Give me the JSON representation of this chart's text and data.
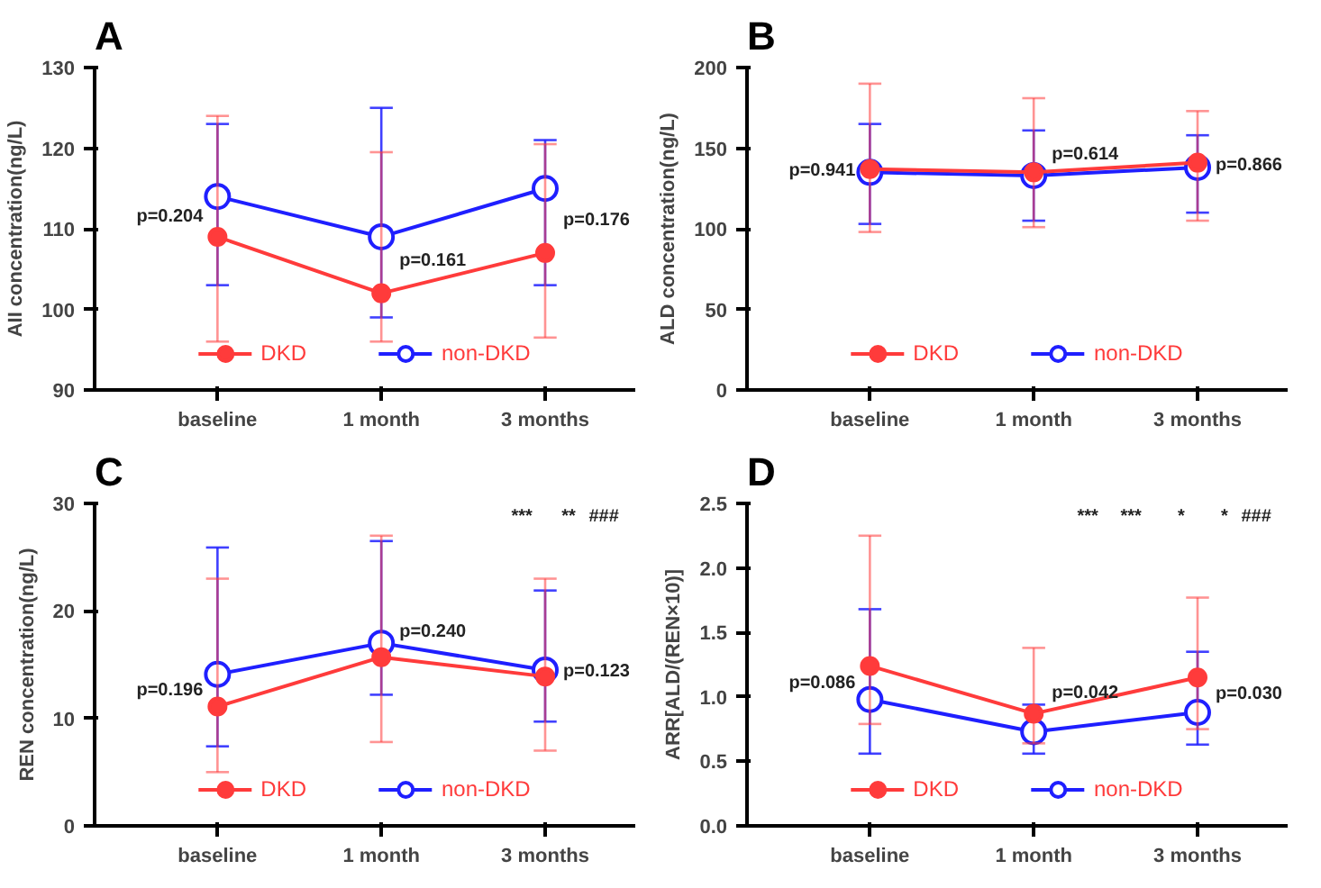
{
  "chart_data": [
    {
      "type": "line",
      "title": "A",
      "ylabel": "AII concentration(ng/L)",
      "categories": [
        "baseline",
        "1 month",
        "3 months"
      ],
      "ylim": [
        90,
        130
      ],
      "yticks": [
        90,
        100,
        110,
        120,
        130
      ],
      "legend": "bottom",
      "marker": "circle",
      "grid": false,
      "series": [
        {
          "name": "DKD",
          "color": "#ff3b3b",
          "values": [
            109,
            102,
            107
          ],
          "errors": [
            [
              96,
              124
            ],
            [
              96,
              119.5
            ],
            [
              96.5,
              120.5
            ]
          ]
        },
        {
          "name": "non-DKD",
          "color": "#1f1fff",
          "values": [
            114,
            109,
            115
          ],
          "errors": [
            [
              103,
              123
            ],
            [
              99,
              125
            ],
            [
              103,
              121
            ]
          ]
        }
      ],
      "annotations": [
        {
          "text": "p=0.204",
          "x": "baseline",
          "y": 111.5
        },
        {
          "text": "p=0.161",
          "x": "1 month",
          "y": 106
        },
        {
          "text": "p=0.176",
          "x": "3 months",
          "y": 111
        }
      ]
    },
    {
      "type": "line",
      "title": "B",
      "ylabel": "ALD concentration(ng/L)",
      "categories": [
        "baseline",
        "1 month",
        "3 months"
      ],
      "ylim": [
        0,
        200
      ],
      "yticks": [
        0,
        50,
        100,
        150,
        200
      ],
      "legend": "bottom",
      "marker": "circle",
      "grid": false,
      "series": [
        {
          "name": "DKD",
          "color": "#ff3b3b",
          "values": [
            137,
            135,
            141
          ],
          "errors": [
            [
              98,
              190
            ],
            [
              101,
              181
            ],
            [
              105,
              173
            ]
          ]
        },
        {
          "name": "non-DKD",
          "color": "#1f1fff",
          "values": [
            135,
            133,
            138
          ],
          "errors": [
            [
              103,
              165
            ],
            [
              105,
              161
            ],
            [
              110,
              158
            ]
          ]
        }
      ],
      "annotations": [
        {
          "text": "p=0.941",
          "x": "baseline",
          "y": 136
        },
        {
          "text": "p=0.614",
          "x": "1 month",
          "y": 146
        },
        {
          "text": "p=0.866",
          "x": "3 months",
          "y": 139
        }
      ]
    },
    {
      "type": "line",
      "title": "C",
      "ylabel": "REN concentration(ng/L)",
      "categories": [
        "baseline",
        "1 month",
        "3 months"
      ],
      "ylim": [
        0,
        30
      ],
      "yticks": [
        0,
        10,
        20,
        30
      ],
      "legend": "bottom",
      "marker": "circle",
      "grid": false,
      "series": [
        {
          "name": "DKD",
          "color": "#ff3b3b",
          "values": [
            11.1,
            15.7,
            13.9
          ],
          "errors": [
            [
              5,
              23
            ],
            [
              7.8,
              27
            ],
            [
              7,
              23
            ]
          ]
        },
        {
          "name": "non-DKD",
          "color": "#1f1fff",
          "values": [
            14.1,
            17,
            14.5
          ],
          "errors": [
            [
              7.4,
              25.9
            ],
            [
              12.2,
              26.5
            ],
            [
              9.7,
              21.9
            ]
          ]
        }
      ],
      "annotations": [
        {
          "text": "p=0.196",
          "x": "baseline",
          "y": 12.6
        },
        {
          "text": "p=0.240",
          "x": "1 month",
          "y": 18
        },
        {
          "text": "p=0.123",
          "x": "3 months",
          "y": 14.3
        },
        "***",
        "**",
        "###"
      ]
    },
    {
      "type": "line",
      "title": "D",
      "ylabel": "ARR[ALD/(REN×10)]",
      "categories": [
        "baseline",
        "1 month",
        "3 months"
      ],
      "ylim": [
        0,
        2.5
      ],
      "yticks": [
        {
          "value": 0,
          "label": "0.0"
        },
        {
          "value": 0.5,
          "label": "0.5"
        },
        {
          "value": 1,
          "label": "1.0"
        },
        {
          "value": 1.5,
          "label": "1.5"
        },
        {
          "value": 2,
          "label": "2.0"
        },
        {
          "value": 2.5,
          "label": "2.5"
        }
      ],
      "legend": "bottom",
      "marker": "circle",
      "grid": false,
      "series": [
        {
          "name": "DKD",
          "color": "#ff3b3b",
          "values": [
            1.24,
            0.87,
            1.15
          ],
          "errors": [
            [
              0.79,
              2.25
            ],
            [
              0.64,
              1.38
            ],
            [
              0.75,
              1.77
            ]
          ]
        },
        {
          "name": "non-DKD",
          "color": "#1f1fff",
          "values": [
            0.98,
            0.73,
            0.88
          ],
          "errors": [
            [
              0.56,
              1.68
            ],
            [
              0.56,
              0.94
            ],
            [
              0.63,
              1.35
            ]
          ]
        }
      ],
      "annotations": [
        {
          "text": "p=0.086",
          "x": "baseline",
          "y": 1.1
        },
        {
          "text": "p=0.042",
          "x": "1 month",
          "y": 1.03
        },
        {
          "text": "p=0.030",
          "x": "3 months",
          "y": 1.02
        },
        "***",
        "***",
        "*",
        "*",
        "###"
      ]
    }
  ]
}
